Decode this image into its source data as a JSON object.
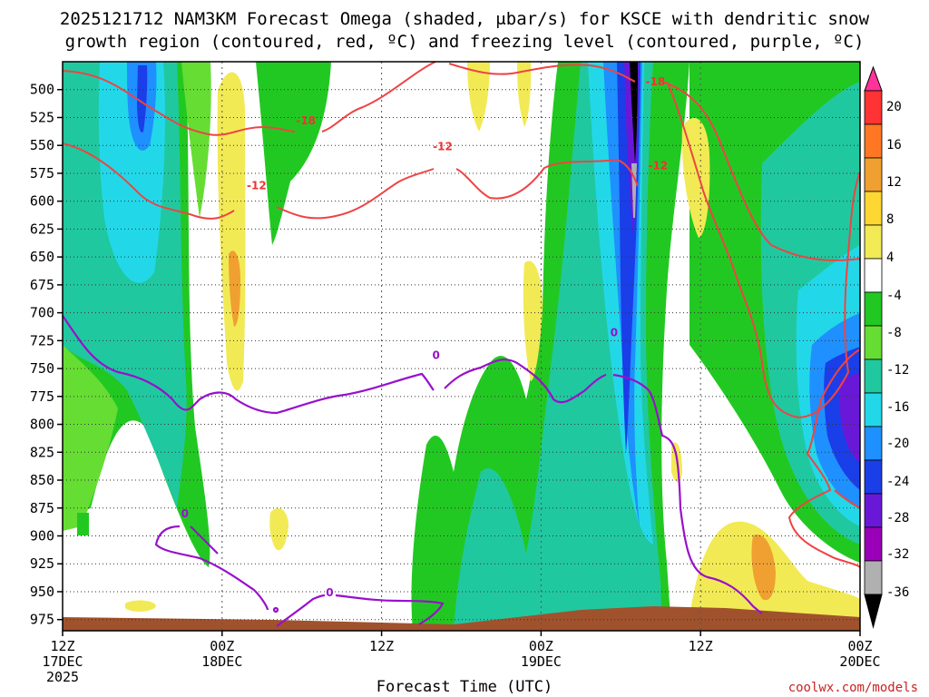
{
  "chart_data": {
    "type": "heatmap",
    "title_line1": "2025121712 NAM3KM Forecast Omega (shaded, μbar/s) for KSCE with dendritic snow",
    "title_line2": "growth region (contoured, red, ºC) and freezing level (contoured, purple, ºC)",
    "xlabel": "Forecast Time (UTC)",
    "credit": "coolwx.com/models",
    "x_ticks": [
      {
        "hour": 0,
        "l1": "12Z",
        "l2": "17DEC",
        "l3": "2025"
      },
      {
        "hour": 12,
        "l1": "00Z",
        "l2": "18DEC",
        "l3": ""
      },
      {
        "hour": 24,
        "l1": "12Z",
        "l2": "",
        "l3": ""
      },
      {
        "hour": 36,
        "l1": "00Z",
        "l2": "19DEC",
        "l3": ""
      },
      {
        "hour": 48,
        "l1": "12Z",
        "l2": "",
        "l3": ""
      },
      {
        "hour": 60,
        "l1": "00Z",
        "l2": "20DEC",
        "l3": ""
      }
    ],
    "y_levels": [
      500,
      525,
      550,
      575,
      600,
      625,
      650,
      675,
      700,
      725,
      750,
      775,
      800,
      825,
      850,
      875,
      900,
      925,
      950,
      975
    ],
    "y_range": [
      475,
      985
    ],
    "x_range": [
      0,
      60
    ],
    "colorbar": {
      "labels": [
        "20",
        "16",
        "12",
        "8",
        "4",
        "-4",
        "-8",
        "-12",
        "-16",
        "-20",
        "-24",
        "-28",
        "-32",
        "-36"
      ],
      "colors": [
        "#ff3399",
        "#ff3333",
        "#ff7722",
        "#f0a030",
        "#ffd733",
        "#f2ea55",
        "#ffffff",
        "#22c822",
        "#66dd33",
        "#20c8a0",
        "#22d8e8",
        "#1e90ff",
        "#1a3ee8",
        "#6a18d8",
        "#9a00b8",
        "#b0b0b0",
        "#000000"
      ]
    },
    "contour_labels": [
      {
        "text": "-18",
        "hour": 18.3,
        "level": 528,
        "color": "#ee3333"
      },
      {
        "text": "-18",
        "hour": 44.6,
        "level": 493,
        "color": "#ee3333"
      },
      {
        "text": "-12",
        "hour": 14.6,
        "level": 586,
        "color": "#ee3333"
      },
      {
        "text": "-12",
        "hour": 28.6,
        "level": 551,
        "color": "#ee3333"
      },
      {
        "text": "-12",
        "hour": 44.8,
        "level": 568,
        "color": "#ee3333"
      },
      {
        "text": "0",
        "hour": 9.2,
        "level": 880,
        "color": "#9910cc"
      },
      {
        "text": "0",
        "hour": 20.1,
        "level": 951,
        "color": "#9910cc"
      },
      {
        "text": "0",
        "hour": 28.1,
        "level": 738,
        "color": "#9910cc"
      },
      {
        "text": "0",
        "hour": 41.5,
        "level": 718,
        "color": "#9910cc"
      }
    ],
    "terrain_color": "#a0522d",
    "purple_color": "#9910cc",
    "red_color": "#ee4444"
  }
}
